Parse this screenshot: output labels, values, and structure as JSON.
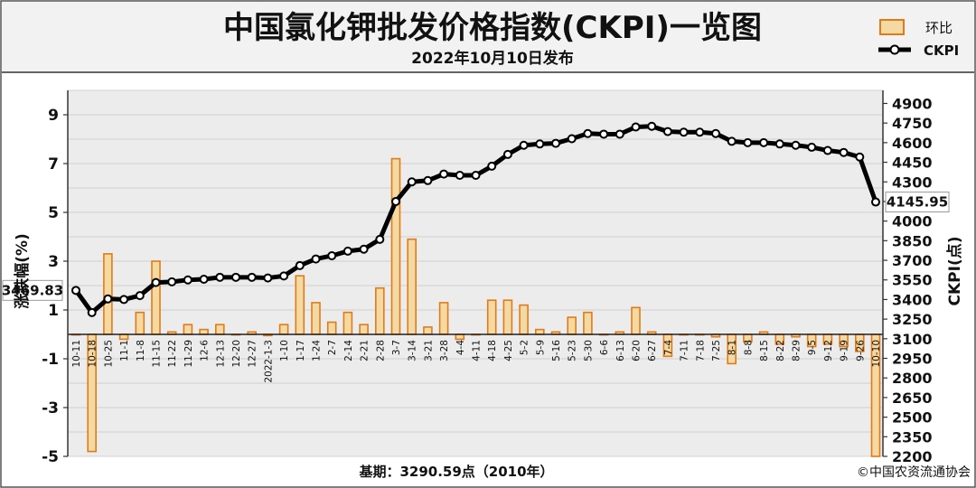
{
  "title": "中国氯化钾批发价格指数(CKPI)一览图",
  "subtitle": "2022年10月10日发布",
  "legend": {
    "bar_label": "环比",
    "line_label": "CKPI"
  },
  "footer": {
    "base_period": "基期：3290.59点（2010年）",
    "copyright": "©中国农资流通协会"
  },
  "colors": {
    "bar_stroke": "#e07b1a",
    "bar_fill": "#f5d9a3",
    "line": "#000000",
    "grid": "#c8c8c8",
    "plot_bg": "#ececec"
  },
  "chart_data": {
    "type": "bar+line",
    "x_tick_labels": [
      "10-11",
      "10-18",
      "10-25",
      "11-1",
      "11-8",
      "11-15",
      "11-22",
      "11-29",
      "12-6",
      "12-13",
      "12-20",
      "12-27",
      "2022-1-3",
      "1-10",
      "1-17",
      "1-24",
      "2-7",
      "2-14",
      "2-21",
      "2-28",
      "3-7",
      "3-14",
      "3-21",
      "3-28",
      "4-4",
      "4-11",
      "4-18",
      "4-25",
      "5-2",
      "5-9",
      "5-16",
      "5-23",
      "5-30",
      "6-6",
      "6-13",
      "6-20",
      "6-27",
      "7-4",
      "7-11",
      "7-18",
      "7-25",
      "8-1",
      "8-8",
      "8-15",
      "8-22",
      "8-29",
      "9-5",
      "9-12",
      "9-19",
      "9-26",
      "10-10"
    ],
    "series": [
      {
        "name": "环比",
        "type": "bar",
        "axis": "left",
        "values": [
          0.0,
          -4.8,
          3.3,
          -0.2,
          0.9,
          3.0,
          0.1,
          0.4,
          0.2,
          0.4,
          0.0,
          0.1,
          -0.05,
          0.4,
          2.4,
          1.3,
          0.5,
          0.9,
          0.4,
          1.9,
          7.2,
          3.9,
          0.3,
          1.3,
          -0.2,
          0.0,
          1.4,
          1.4,
          1.2,
          0.2,
          0.1,
          0.7,
          0.9,
          0.0,
          0.1,
          1.1,
          0.1,
          -0.9,
          0.0,
          0.0,
          -0.1,
          -1.2,
          -0.3,
          0.1,
          -0.4,
          -0.1,
          -0.5,
          -0.4,
          -0.5,
          -0.7,
          -5.0
        ]
      },
      {
        "name": "CKPI",
        "type": "line",
        "axis": "right",
        "values": [
          3469.83,
          3300,
          3405,
          3400,
          3430,
          3530,
          3535,
          3550,
          3555,
          3570,
          3570,
          3570,
          3565,
          3580,
          3660,
          3710,
          3735,
          3770,
          3785,
          3860,
          4150,
          4300,
          4310,
          4360,
          4350,
          4350,
          4420,
          4510,
          4580,
          4590,
          4595,
          4630,
          4670,
          4665,
          4665,
          4720,
          4725,
          4685,
          4680,
          4680,
          4670,
          4610,
          4600,
          4600,
          4590,
          4580,
          4565,
          4540,
          4525,
          4490,
          4145.95
        ]
      }
    ],
    "labeled_points": [
      "3469.83",
      "4145.95"
    ],
    "ylabel_left": "涨跌幅(%)",
    "ylabel_right": "CKPI(点)",
    "ylim_left": [
      -5,
      10
    ],
    "ylim_right": [
      2200,
      5000
    ],
    "left_ticks": [
      9,
      7,
      5,
      3,
      1,
      -1,
      -3,
      -5
    ],
    "right_ticks": [
      4900,
      4750,
      4600,
      4450,
      4300,
      4150,
      4000,
      3850,
      3700,
      3550,
      3400,
      3250,
      3100,
      2950,
      2800,
      2650,
      2500,
      2350,
      2200
    ],
    "grid": true,
    "legend_position": "top-right"
  }
}
